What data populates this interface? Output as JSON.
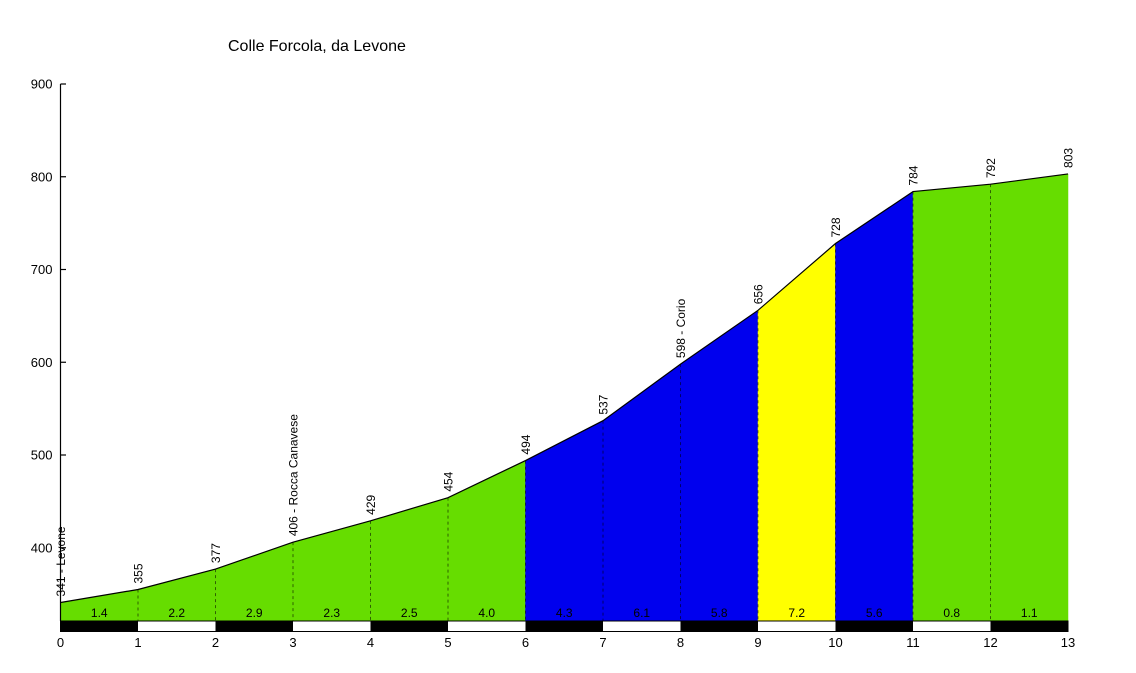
{
  "chart_data": {
    "type": "area",
    "title": "Colle Forcola, da Levone",
    "xlabel": "",
    "ylabel": "",
    "grid": "off",
    "legend": "none",
    "x_km": [
      0,
      1,
      2,
      3,
      4,
      5,
      6,
      7,
      8,
      9,
      10,
      11,
      12,
      13
    ],
    "elevations_m": [
      341,
      355,
      377,
      406,
      429,
      454,
      494,
      537,
      598,
      656,
      728,
      784,
      792,
      803
    ],
    "point_labels": [
      "341 - Levone",
      "355",
      "377",
      "406 - Rocca Canavese",
      "429",
      "454",
      "494",
      "537",
      "598 - Corio",
      "656",
      "728",
      "784",
      "792",
      "803"
    ],
    "segments": [
      {
        "km_start": 0,
        "km_end": 1,
        "gradient_pct": "1.4",
        "color_key": "green"
      },
      {
        "km_start": 1,
        "km_end": 2,
        "gradient_pct": "2.2",
        "color_key": "green"
      },
      {
        "km_start": 2,
        "km_end": 3,
        "gradient_pct": "2.9",
        "color_key": "green"
      },
      {
        "km_start": 3,
        "km_end": 4,
        "gradient_pct": "2.3",
        "color_key": "green"
      },
      {
        "km_start": 4,
        "km_end": 5,
        "gradient_pct": "2.5",
        "color_key": "green"
      },
      {
        "km_start": 5,
        "km_end": 6,
        "gradient_pct": "4.0",
        "color_key": "green"
      },
      {
        "km_start": 6,
        "km_end": 7,
        "gradient_pct": "4.3",
        "color_key": "blue"
      },
      {
        "km_start": 7,
        "km_end": 8,
        "gradient_pct": "6.1",
        "color_key": "blue"
      },
      {
        "km_start": 8,
        "km_end": 9,
        "gradient_pct": "5.8",
        "color_key": "blue"
      },
      {
        "km_start": 9,
        "km_end": 10,
        "gradient_pct": "7.2",
        "color_key": "yellow"
      },
      {
        "km_start": 10,
        "km_end": 11,
        "gradient_pct": "5.6",
        "color_key": "blue"
      },
      {
        "km_start": 11,
        "km_end": 12,
        "gradient_pct": "0.8",
        "color_key": "green"
      },
      {
        "km_start": 12,
        "km_end": 13,
        "gradient_pct": "1.1",
        "color_key": "green"
      }
    ],
    "x_tick_labels": [
      "0",
      "1",
      "2",
      "3",
      "4",
      "5",
      "6",
      "7",
      "8",
      "9",
      "10",
      "11",
      "12",
      "13"
    ],
    "y_tick_labels": [
      "900",
      "800",
      "700",
      "600",
      "500",
      "400"
    ],
    "y_tick_values": [
      900,
      800,
      700,
      600,
      500,
      400
    ],
    "y_axis_range_m": [
      322,
      900
    ],
    "km_bar_pattern": [
      "black",
      "white",
      "black",
      "white",
      "black",
      "white",
      "black",
      "white",
      "black",
      "white",
      "black",
      "white",
      "black"
    ],
    "colors": {
      "green": "#66DD00",
      "blue": "#0000EE",
      "yellow": "#FFFF00",
      "profile_line": "#000000",
      "bar_black": "#000000",
      "bar_white": "#FFFFFF",
      "text": "#000000",
      "background": "#FFFFFF"
    }
  }
}
